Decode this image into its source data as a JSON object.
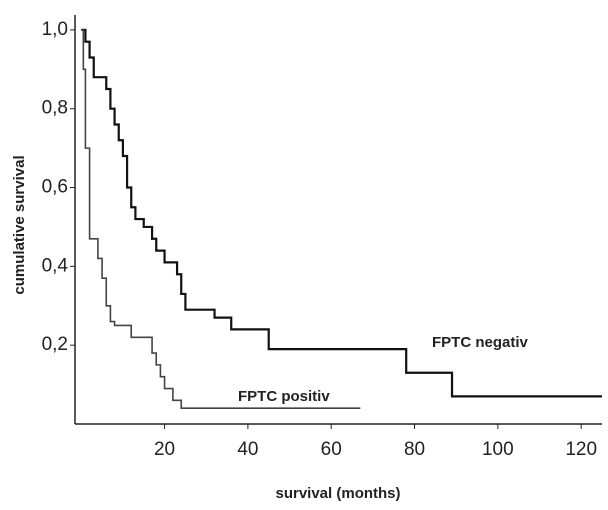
{
  "chart_data": {
    "type": "step",
    "xlabel": "survival (months)",
    "ylabel": "cumulative survival",
    "xlim": [
      -1.5,
      125
    ],
    "ylim": [
      0,
      1.02
    ],
    "xticks": [
      20,
      40,
      60,
      80,
      100,
      120
    ],
    "yticks": [
      {
        "value": 0.2,
        "label": "0,2"
      },
      {
        "value": 0.4,
        "label": "0,4"
      },
      {
        "value": 0.6,
        "label": "0,6"
      },
      {
        "value": 0.8,
        "label": "0,8"
      },
      {
        "value": 1.0,
        "label": "1,0"
      }
    ],
    "grid": false,
    "series": [
      {
        "name": "FPTC negativ",
        "color": "#111111",
        "x": [
          0,
          1,
          2,
          3,
          6,
          7,
          8,
          9,
          10,
          11,
          12,
          13,
          15,
          17,
          18,
          20,
          23,
          24,
          25,
          32,
          36,
          45,
          78,
          89,
          125
        ],
        "values": [
          1.0,
          0.97,
          0.93,
          0.88,
          0.85,
          0.8,
          0.76,
          0.72,
          0.68,
          0.6,
          0.55,
          0.52,
          0.5,
          0.47,
          0.44,
          0.41,
          0.38,
          0.33,
          0.29,
          0.27,
          0.24,
          0.19,
          0.13,
          0.07,
          0.07
        ]
      },
      {
        "name": "FPTC positiv",
        "color": "#444444",
        "x": [
          0,
          0.5,
          1,
          2,
          4,
          5,
          6,
          7,
          8,
          12,
          17,
          18,
          19,
          20,
          22,
          24,
          67
        ],
        "values": [
          1.0,
          0.9,
          0.7,
          0.47,
          0.42,
          0.37,
          0.3,
          0.26,
          0.25,
          0.22,
          0.18,
          0.15,
          0.12,
          0.09,
          0.06,
          0.04,
          0.04
        ]
      }
    ]
  }
}
